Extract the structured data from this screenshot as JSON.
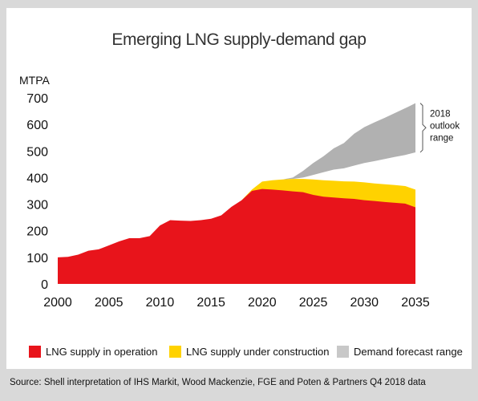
{
  "chart_data": {
    "type": "area",
    "title": "Emerging LNG supply-demand gap",
    "ylabel": "MTPA",
    "xlabel": "",
    "ylim": [
      0,
      700
    ],
    "xlim": [
      2000,
      2035
    ],
    "yticks": [
      0,
      100,
      200,
      300,
      400,
      500,
      600,
      700
    ],
    "xticks": [
      2000,
      2005,
      2010,
      2015,
      2020,
      2025,
      2030,
      2035
    ],
    "grid": false,
    "legend_position": "bottom",
    "colors": {
      "operation": "#e8141b",
      "construction": "#ffd200",
      "demand": "#b1b1b1"
    },
    "series": [
      {
        "name": "LNG supply in operation",
        "x": [
          2000,
          2001,
          2002,
          2003,
          2004,
          2005,
          2006,
          2007,
          2008,
          2009,
          2010,
          2011,
          2012,
          2013,
          2014,
          2015,
          2016,
          2017,
          2018,
          2019,
          2020,
          2021,
          2022,
          2023,
          2024,
          2025,
          2026,
          2027,
          2028,
          2029,
          2030,
          2031,
          2032,
          2033,
          2034,
          2035
        ],
        "values": [
          100,
          102,
          110,
          125,
          130,
          145,
          160,
          172,
          172,
          180,
          220,
          240,
          238,
          237,
          240,
          245,
          258,
          290,
          315,
          350,
          357,
          355,
          352,
          348,
          345,
          335,
          328,
          325,
          322,
          320,
          315,
          312,
          308,
          305,
          302,
          288
        ]
      },
      {
        "name": "LNG supply under construction",
        "x": [
          2018,
          2019,
          2020,
          2021,
          2022,
          2023,
          2024,
          2025,
          2026,
          2027,
          2028,
          2029,
          2030,
          2031,
          2032,
          2033,
          2034,
          2035
        ],
        "values": [
          315,
          355,
          385,
          390,
          393,
          395,
          395,
          393,
          390,
          388,
          386,
          385,
          382,
          378,
          375,
          372,
          368,
          355
        ]
      },
      {
        "name": "Demand forecast range",
        "x": [
          2021,
          2022,
          2023,
          2024,
          2025,
          2026,
          2027,
          2028,
          2029,
          2030,
          2031,
          2032,
          2033,
          2034,
          2035
        ],
        "low": [
          390,
          393,
          395,
          400,
          410,
          420,
          430,
          435,
          445,
          455,
          462,
          470,
          478,
          485,
          495
        ],
        "high": [
          390,
          393,
          400,
          425,
          455,
          480,
          510,
          530,
          565,
          590,
          608,
          625,
          643,
          661,
          680
        ]
      }
    ],
    "annotations": [
      {
        "text_lines": [
          "2018",
          "outlook",
          "range"
        ],
        "range": [
          495,
          680
        ]
      }
    ]
  },
  "footer": {
    "source": "Source: Shell interpretation of IHS Markit, Wood Mackenzie, FGE and Poten & Partners Q4 2018 data"
  }
}
